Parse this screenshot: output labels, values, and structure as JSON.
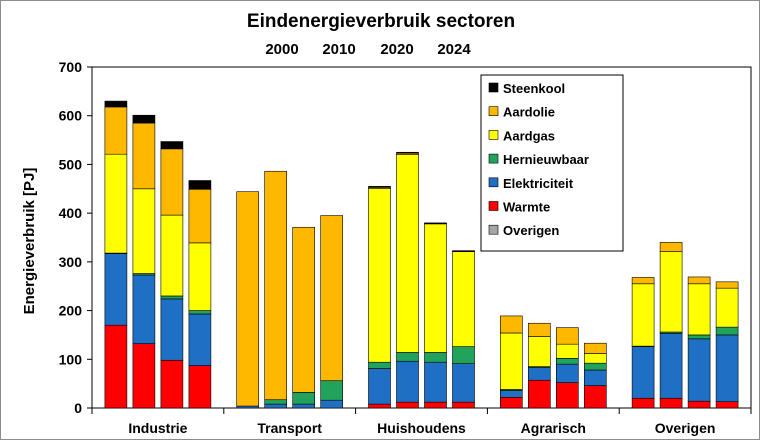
{
  "chart_data": {
    "type": "bar",
    "stacked": true,
    "title": "Eindenergieverbruik sectoren",
    "subtitle_years": [
      "2000",
      "2010",
      "2020",
      "2024"
    ],
    "ylabel": "Energieverbruik [PJ]",
    "xlabel": "",
    "ylim": [
      0,
      700
    ],
    "yticks": [
      0,
      100,
      200,
      300,
      400,
      500,
      600,
      700
    ],
    "categories": [
      "Industrie",
      "Transport",
      "Huishoudens",
      "Agrarisch",
      "Overigen"
    ],
    "years": [
      "2000",
      "2010",
      "2020",
      "2024"
    ],
    "legend_position": "top-right",
    "legend_order": [
      "Steenkool",
      "Aardolie",
      "Aardgas",
      "Hernieuwbaar",
      "Elektriciteit",
      "Warmte",
      "Overigen"
    ],
    "series": [
      {
        "name": "Warmte",
        "color": "#ff0000",
        "values": [
          [
            170,
            132,
            98,
            87
          ],
          [
            0,
            0,
            0,
            0
          ],
          [
            8,
            12,
            12,
            12
          ],
          [
            22,
            57,
            52,
            46
          ],
          [
            20,
            20,
            14,
            13
          ]
        ]
      },
      {
        "name": "Elektriciteit",
        "color": "#1f6fc5",
        "values": [
          [
            147,
            141,
            126,
            106
          ],
          [
            4,
            8,
            8,
            16
          ],
          [
            73,
            84,
            82,
            79
          ],
          [
            14,
            26,
            38,
            32
          ],
          [
            106,
            133,
            128,
            137
          ]
        ]
      },
      {
        "name": "Hernieuwbaar",
        "color": "#21a35c",
        "values": [
          [
            1,
            3,
            6,
            7
          ],
          [
            0,
            9,
            24,
            40
          ],
          [
            13,
            18,
            20,
            35
          ],
          [
            2,
            2,
            12,
            14
          ],
          [
            1,
            3,
            8,
            16
          ]
        ]
      },
      {
        "name": "Overigen",
        "color": "#a6a6a6",
        "values": [
          [
            0,
            0,
            0,
            0
          ],
          [
            0,
            0,
            0,
            0
          ],
          [
            0,
            0,
            0,
            0
          ],
          [
            0,
            0,
            0,
            0
          ],
          [
            0,
            0,
            0,
            0
          ]
        ]
      },
      {
        "name": "Aardgas",
        "color": "#ffff00",
        "values": [
          [
            203,
            174,
            166,
            139
          ],
          [
            0,
            0,
            0,
            0
          ],
          [
            357,
            406,
            264,
            195
          ],
          [
            116,
            62,
            29,
            20
          ],
          [
            128,
            165,
            105,
            80
          ]
        ]
      },
      {
        "name": "Aardolie",
        "color": "#ffb800",
        "values": [
          [
            97,
            135,
            136,
            110
          ],
          [
            440,
            469,
            339,
            339
          ],
          [
            2,
            3,
            1,
            1
          ],
          [
            35,
            27,
            34,
            21
          ],
          [
            13,
            19,
            14,
            13
          ]
        ]
      },
      {
        "name": "Steenkool",
        "color": "#000000",
        "values": [
          [
            12,
            16,
            15,
            18
          ],
          [
            0,
            0,
            0,
            0
          ],
          [
            2,
            2,
            1,
            1
          ],
          [
            0,
            0,
            0,
            0
          ],
          [
            0,
            0,
            0,
            0
          ]
        ]
      }
    ]
  }
}
